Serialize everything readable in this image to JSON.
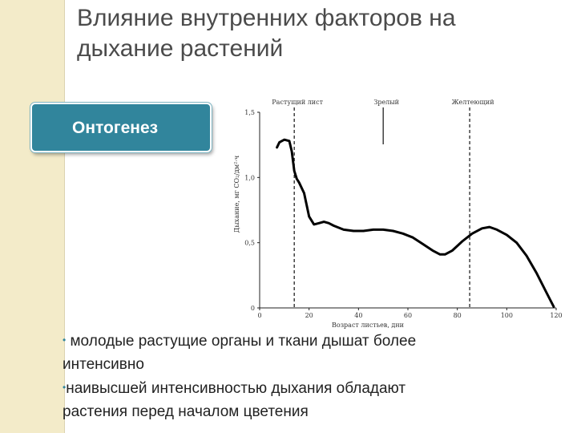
{
  "slide": {
    "title_line1": "Влияние внутренних факторов на",
    "title_line2": "дыхание растений",
    "tag_label": "Онтогенез",
    "bullets": [
      {
        "mark": "•",
        "text": " молодые растущие органы и ткани дышат более"
      },
      {
        "mark": "",
        "text": "интенсивно"
      },
      {
        "mark": "•",
        "text": "наивысшей интенсивностью дыхания обладают"
      },
      {
        "mark": "",
        "text": "растения перед началом цветения"
      }
    ],
    "accent_color": "#31859c"
  },
  "chart_data": {
    "type": "line",
    "xlabel": "Возраст листьев, дни",
    "ylabel": "Дыхание, мг CO₂/дм²·ч",
    "xlim": [
      0,
      120
    ],
    "ylim": [
      0,
      1.5
    ],
    "xticks": [
      0,
      20,
      40,
      60,
      80,
      100,
      120
    ],
    "yticks": [
      0,
      0.5,
      1.0,
      1.5
    ],
    "ytick_labels": [
      "0",
      "0,5",
      "1,0",
      "1,5"
    ],
    "series": [
      {
        "x": [
          7,
          8,
          10,
          12,
          13,
          14,
          15,
          16,
          18,
          20,
          22,
          24,
          26,
          28,
          30,
          34,
          38,
          42,
          46,
          50,
          54,
          58,
          62,
          66,
          70,
          73,
          75,
          78,
          82,
          86,
          90,
          93,
          96,
          100,
          104,
          108,
          112,
          116,
          119
        ],
        "y": [
          1.23,
          1.27,
          1.29,
          1.28,
          1.2,
          1.05,
          0.99,
          0.96,
          0.88,
          0.7,
          0.64,
          0.65,
          0.66,
          0.65,
          0.63,
          0.6,
          0.59,
          0.59,
          0.6,
          0.6,
          0.59,
          0.57,
          0.54,
          0.49,
          0.44,
          0.41,
          0.41,
          0.44,
          0.51,
          0.57,
          0.61,
          0.62,
          0.6,
          0.56,
          0.5,
          0.4,
          0.27,
          0.12,
          0.01
        ]
      }
    ],
    "markers": [
      {
        "label": "Растущий лист",
        "x": 14,
        "style": "dashed"
      },
      {
        "label": "Зрелый",
        "x": 50,
        "style": "solid"
      },
      {
        "label": "Желтеющий",
        "x": 85,
        "style": "dashed"
      }
    ]
  }
}
